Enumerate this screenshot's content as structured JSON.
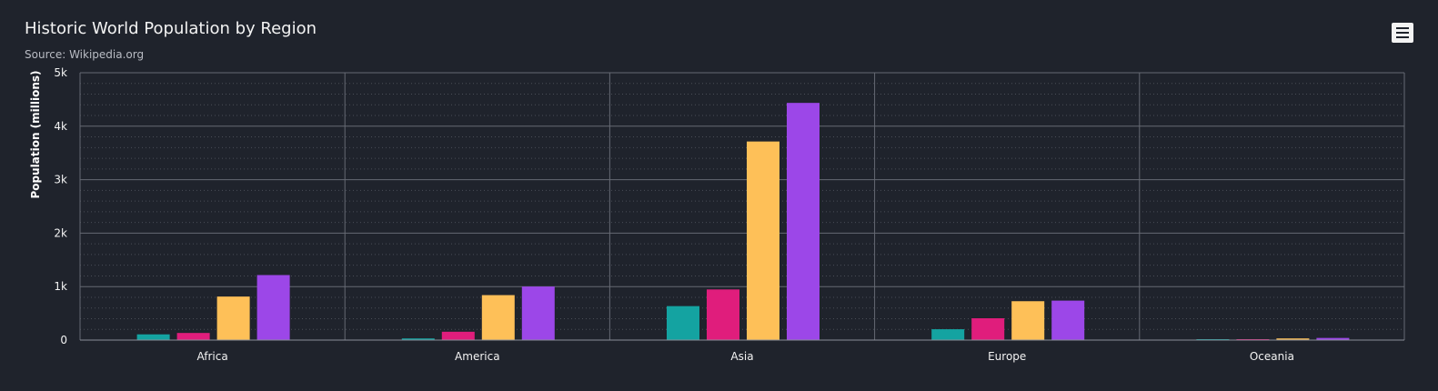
{
  "header": {
    "title": "Historic World Population by Region",
    "subtitle": "Source: Wikipedia.org"
  },
  "menu": {
    "icon": "hamburger-menu-icon"
  },
  "chart_data": {
    "type": "bar",
    "title": "Historic World Population by Region",
    "subtitle": "Source: Wikipedia.org",
    "xlabel": "",
    "ylabel": "Population (millions)",
    "categories": [
      "Africa",
      "America",
      "Asia",
      "Europe",
      "Oceania"
    ],
    "ylim": [
      0,
      5000
    ],
    "y_ticks": [
      0,
      1000,
      2000,
      3000,
      4000,
      5000
    ],
    "y_tick_labels": [
      "0",
      "1k",
      "2k",
      "3k",
      "4k",
      "5k"
    ],
    "grid": true,
    "legend": "none",
    "series": [
      {
        "color": "#14a3a1",
        "values": [
          107,
          31,
          635,
          203,
          2
        ]
      },
      {
        "color": "#e01d7c",
        "values": [
          133,
          156,
          947,
          408,
          6
        ]
      },
      {
        "color": "#fec058",
        "values": [
          814,
          841,
          3714,
          727,
          31
        ]
      },
      {
        "color": "#9c47e8",
        "values": [
          1216,
          1001,
          4436,
          738,
          40
        ]
      }
    ]
  }
}
